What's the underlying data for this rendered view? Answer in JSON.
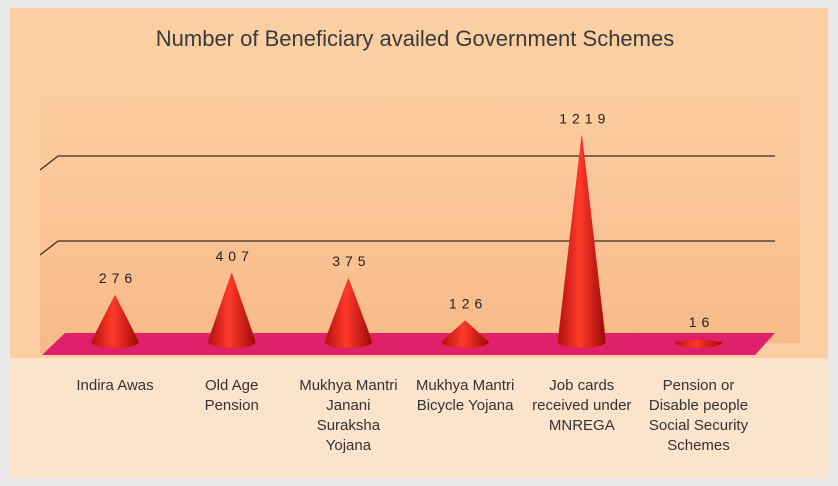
{
  "chart_data": {
    "type": "cone",
    "title": "Number of Beneficiary availed Government Schemes",
    "categories": [
      "Indira Awas",
      "Old Age Pension",
      "Mukhya Mantri Janani Suraksha Yojana",
      "Mukhya Mantri Bicycle Yojana",
      "Job cards received under MNREGA",
      "Pension or Disable people Social Security Schemes"
    ],
    "values": [
      276,
      407,
      375,
      126,
      1219,
      16
    ],
    "color": "#e8221e",
    "ylim": [
      0,
      1300
    ]
  }
}
